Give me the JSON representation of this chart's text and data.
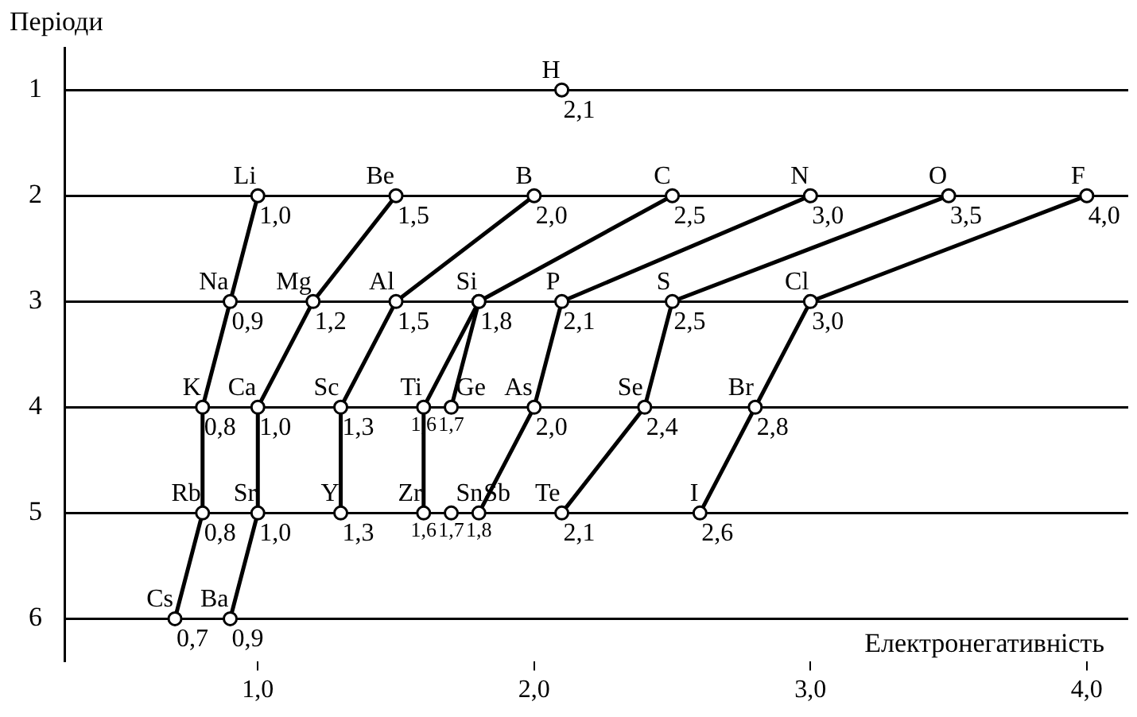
{
  "chart_data": {
    "type": "line",
    "xlabel": "Електронегативність",
    "ylabel": "Періоди",
    "xlim": [
      0.3,
      4.15
    ],
    "ylim": [
      6.4,
      0.6
    ],
    "xticks": [
      {
        "value": 1,
        "label": "1,0"
      },
      {
        "value": 2,
        "label": "2,0"
      },
      {
        "value": 3,
        "label": "3,0"
      },
      {
        "value": 4,
        "label": "4,0"
      }
    ],
    "yticks": [
      1,
      2,
      3,
      4,
      5,
      6
    ],
    "grid": "y",
    "legend": false,
    "marker": "circle",
    "line_style": "solid",
    "series": [
      {
        "type": "scatter",
        "color": "#000000",
        "x": [
          2.1
        ],
        "values": [
          1
        ]
      },
      {
        "color": "#000000",
        "x": [
          1.0,
          0.9,
          0.8,
          0.8,
          0.7
        ],
        "values": [
          2,
          3,
          4,
          5,
          6
        ]
      },
      {
        "color": "#000000",
        "x": [
          1.5,
          1.2,
          1.0,
          1.0,
          0.9
        ],
        "values": [
          2,
          3,
          4,
          5,
          6
        ]
      },
      {
        "color": "#000000",
        "x": [
          2.0,
          1.5,
          1.3,
          1.3
        ],
        "values": [
          2,
          3,
          4,
          5
        ]
      },
      {
        "color": "#000000",
        "x": [
          2.5,
          1.8,
          1.6,
          1.6
        ],
        "values": [
          2,
          3,
          4,
          5
        ]
      },
      {
        "color": "#000000",
        "x": [
          1.8,
          1.7
        ],
        "values": [
          3,
          4
        ]
      },
      {
        "type": "scatter",
        "color": "#000000",
        "x": [
          1.7
        ],
        "values": [
          5
        ]
      },
      {
        "color": "#000000",
        "x": [
          3.0,
          2.1,
          2.0,
          1.8
        ],
        "values": [
          2,
          3,
          4,
          5
        ]
      },
      {
        "color": "#000000",
        "x": [
          3.5,
          2.5,
          2.4,
          2.1
        ],
        "values": [
          2,
          3,
          4,
          5
        ]
      },
      {
        "color": "#000000",
        "x": [
          4.0,
          3.0,
          2.8,
          2.6
        ],
        "values": [
          2,
          3,
          4,
          5
        ]
      }
    ],
    "annotations": [
      {
        "text": "H",
        "x": 2.1,
        "y": 1
      },
      {
        "text": "2,1",
        "x": 2.1,
        "y": 1
      },
      {
        "text": "Li",
        "x": 1.0,
        "y": 2
      },
      {
        "text": "1,0",
        "x": 1.0,
        "y": 2
      },
      {
        "text": "Be",
        "x": 1.5,
        "y": 2
      },
      {
        "text": "1,5",
        "x": 1.5,
        "y": 2
      },
      {
        "text": "B",
        "x": 2.0,
        "y": 2
      },
      {
        "text": "2,0",
        "x": 2.0,
        "y": 2
      },
      {
        "text": "C",
        "x": 2.5,
        "y": 2
      },
      {
        "text": "2,5",
        "x": 2.5,
        "y": 2
      },
      {
        "text": "N",
        "x": 3.0,
        "y": 2
      },
      {
        "text": "3,0",
        "x": 3.0,
        "y": 2
      },
      {
        "text": "O",
        "x": 3.5,
        "y": 2
      },
      {
        "text": "3,5",
        "x": 3.5,
        "y": 2
      },
      {
        "text": "F",
        "x": 4.0,
        "y": 2
      },
      {
        "text": "4,0",
        "x": 4.0,
        "y": 2
      },
      {
        "text": "Na",
        "x": 0.9,
        "y": 3
      },
      {
        "text": "0,9",
        "x": 0.9,
        "y": 3
      },
      {
        "text": "Mg",
        "x": 1.2,
        "y": 3
      },
      {
        "text": "1,2",
        "x": 1.2,
        "y": 3
      },
      {
        "text": "Al",
        "x": 1.5,
        "y": 3
      },
      {
        "text": "1,5",
        "x": 1.5,
        "y": 3
      },
      {
        "text": "Si",
        "x": 1.8,
        "y": 3
      },
      {
        "text": "1,8",
        "x": 1.8,
        "y": 3
      },
      {
        "text": "P",
        "x": 2.1,
        "y": 3
      },
      {
        "text": "2,1",
        "x": 2.1,
        "y": 3
      },
      {
        "text": "S",
        "x": 2.5,
        "y": 3
      },
      {
        "text": "2,5",
        "x": 2.5,
        "y": 3
      },
      {
        "text": "Cl",
        "x": 3.0,
        "y": 3
      },
      {
        "text": "3,0",
        "x": 3.0,
        "y": 3
      },
      {
        "text": "K",
        "x": 0.8,
        "y": 4
      },
      {
        "text": "0,8",
        "x": 0.8,
        "y": 4
      },
      {
        "text": "Ca",
        "x": 1.0,
        "y": 4
      },
      {
        "text": "1,0",
        "x": 1.0,
        "y": 4
      },
      {
        "text": "Sc",
        "x": 1.3,
        "y": 4
      },
      {
        "text": "1,3",
        "x": 1.3,
        "y": 4
      },
      {
        "text": "Ti",
        "x": 1.6,
        "y": 4
      },
      {
        "text": "1,6",
        "x": 1.6,
        "y": 4
      },
      {
        "text": "Ge",
        "x": 1.7,
        "y": 4
      },
      {
        "text": "1,7",
        "x": 1.7,
        "y": 4
      },
      {
        "text": "As",
        "x": 2.0,
        "y": 4
      },
      {
        "text": "2,0",
        "x": 2.0,
        "y": 4
      },
      {
        "text": "Se",
        "x": 2.4,
        "y": 4
      },
      {
        "text": "2,4",
        "x": 2.4,
        "y": 4
      },
      {
        "text": "Br",
        "x": 2.8,
        "y": 4
      },
      {
        "text": "2,8",
        "x": 2.8,
        "y": 4
      },
      {
        "text": "Rb",
        "x": 0.8,
        "y": 5
      },
      {
        "text": "0,8",
        "x": 0.8,
        "y": 5
      },
      {
        "text": "Sr",
        "x": 1.0,
        "y": 5
      },
      {
        "text": "1,0",
        "x": 1.0,
        "y": 5
      },
      {
        "text": "Y",
        "x": 1.3,
        "y": 5
      },
      {
        "text": "1,3",
        "x": 1.3,
        "y": 5
      },
      {
        "text": "Zr",
        "x": 1.6,
        "y": 5
      },
      {
        "text": "1,6",
        "x": 1.6,
        "y": 5
      },
      {
        "text": "Sn",
        "x": 1.7,
        "y": 5
      },
      {
        "text": "1,7",
        "x": 1.7,
        "y": 5
      },
      {
        "text": "Sb",
        "x": 1.8,
        "y": 5
      },
      {
        "text": "1,8",
        "x": 1.8,
        "y": 5
      },
      {
        "text": "Te",
        "x": 2.1,
        "y": 5
      },
      {
        "text": "2,1",
        "x": 2.1,
        "y": 5
      },
      {
        "text": "I",
        "x": 2.6,
        "y": 5
      },
      {
        "text": "2,6",
        "x": 2.6,
        "y": 5
      },
      {
        "text": "Cs",
        "x": 0.7,
        "y": 6
      },
      {
        "text": "0,7",
        "x": 0.7,
        "y": 6
      },
      {
        "text": "Ba",
        "x": 0.9,
        "y": 6
      },
      {
        "text": "0,9",
        "x": 0.9,
        "y": 6
      }
    ]
  }
}
